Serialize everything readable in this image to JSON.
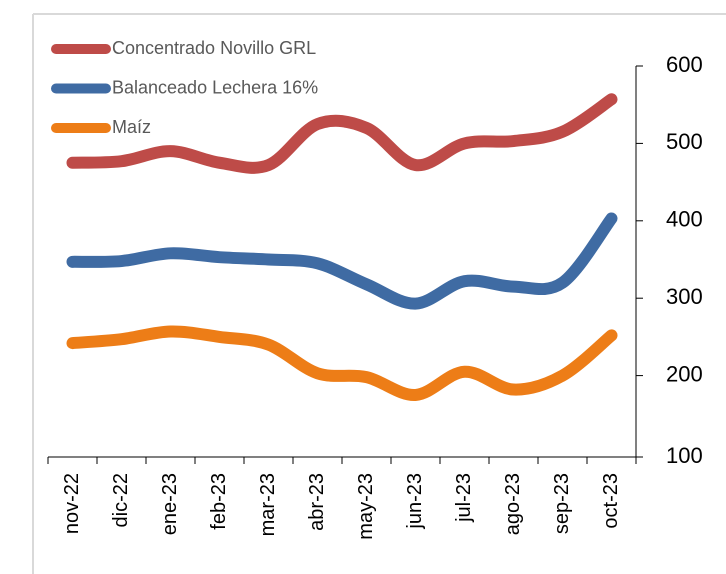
{
  "chart_data": {
    "type": "line",
    "categories": [
      "nov-22",
      "dic-22",
      "ene-23",
      "feb-23",
      "mar-23",
      "abr-23",
      "may-23",
      "jun-23",
      "jul-23",
      "ago-23",
      "sep-23",
      "oct-23"
    ],
    "series": [
      {
        "name": "Concentrado Novillo GRL",
        "color": "#be4b48",
        "values": [
          475,
          477,
          490,
          475,
          472,
          525,
          520,
          472,
          500,
          503,
          515,
          557
        ]
      },
      {
        "name": "Balanceado Lechera 16%",
        "color": "#3f6ba3",
        "values": [
          347,
          348,
          358,
          353,
          350,
          345,
          318,
          293,
          322,
          315,
          320,
          403
        ]
      },
      {
        "name": "Maíz",
        "color": "#ed7d17",
        "values": [
          242,
          247,
          257,
          250,
          240,
          203,
          198,
          175,
          205,
          182,
          200,
          252
        ]
      }
    ],
    "ylim": [
      100,
      600
    ],
    "yticks": [
      100,
      200,
      300,
      400,
      500,
      600
    ],
    "y_axis_side": "right",
    "legend": "upper left",
    "grid": false,
    "smooth": true
  }
}
